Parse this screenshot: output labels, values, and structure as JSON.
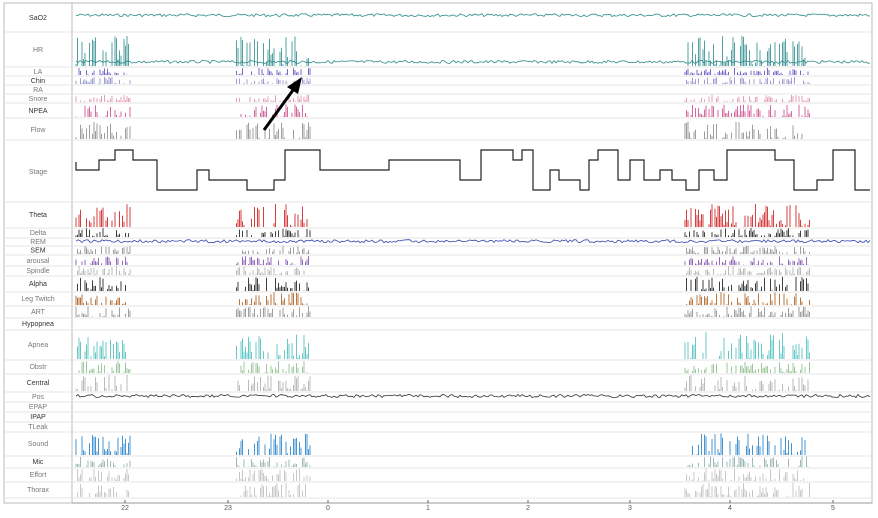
{
  "tracks": [
    "SaO2",
    "HR",
    "LA",
    "Chin",
    "RA",
    "Snore",
    "NPEA",
    "Flow",
    "Stage",
    "Theta",
    "Delta",
    "REM",
    "SEM",
    "arousal",
    "Spindle",
    "Alpha",
    "Leg Twitch",
    "ART",
    "Hypopnea",
    "Apnea",
    "Obstr",
    "Central",
    "Pos",
    "EPAP",
    "IPAP",
    "TLeak",
    "Sound",
    "Mic",
    "Effort",
    "Thorax"
  ],
  "time_axis": {
    "ticks": [
      "22",
      "23",
      "0",
      "1",
      "2",
      "3",
      "4",
      "5"
    ]
  }
}
